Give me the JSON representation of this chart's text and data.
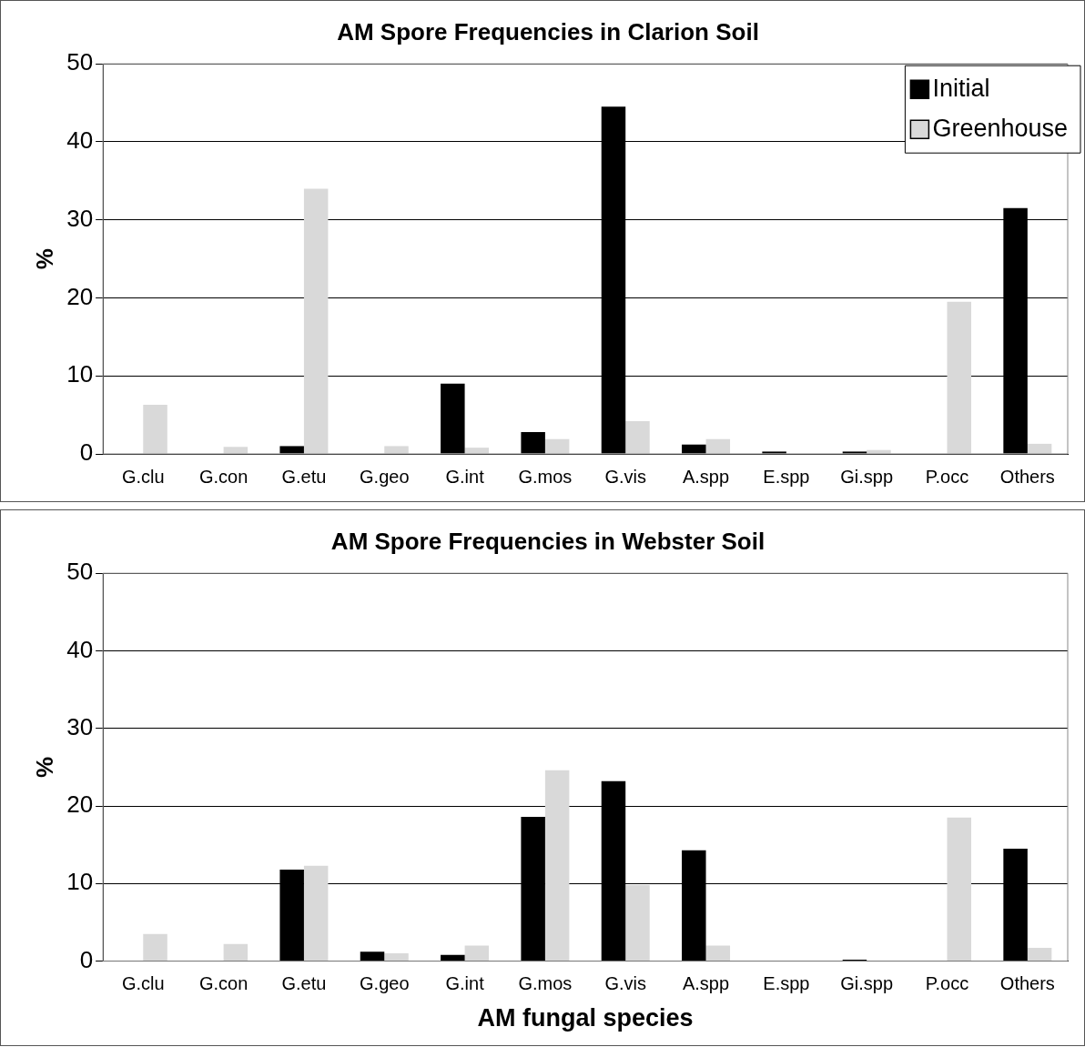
{
  "chart_data": [
    {
      "type": "bar",
      "title": "AM Spore Frequencies in Clarion Soil",
      "ylabel": "%",
      "categories": [
        "G.clu",
        "G.con",
        "G.etu",
        "G.geo",
        "G.int",
        "G.mos",
        "G.vis",
        "A.spp",
        "E.spp",
        "Gi.spp",
        "P.occ",
        "Others"
      ],
      "series": [
        {
          "name": "Initial",
          "color": "#000000",
          "values": [
            0,
            0,
            1,
            0,
            9,
            2.8,
            44.5,
            1.2,
            0.3,
            0.3,
            0,
            31.5
          ]
        },
        {
          "name": "Greenhouse",
          "color": "#d9d9d9",
          "values": [
            6.3,
            0.9,
            34,
            1,
            0.8,
            1.9,
            4.2,
            1.9,
            0,
            0.5,
            19.5,
            1.3
          ]
        }
      ],
      "ylim": [
        0,
        50
      ],
      "yticks": [
        0,
        10,
        20,
        30,
        40,
        50
      ],
      "grid": "y",
      "legend": "top right"
    },
    {
      "type": "bar",
      "title": "AM Spore Frequencies in Webster Soil",
      "xlabel": "AM fungal species",
      "ylabel": "%",
      "categories": [
        "G.clu",
        "G.con",
        "G.etu",
        "G.geo",
        "G.int",
        "G.mos",
        "G.vis",
        "A.spp",
        "E.spp",
        "Gi.spp",
        "P.occ",
        "Others"
      ],
      "series": [
        {
          "color": "#000000",
          "values": [
            0,
            0,
            11.8,
            1.2,
            0.8,
            18.6,
            23.2,
            14.3,
            0,
            0.2,
            0,
            14.5
          ]
        },
        {
          "color": "#d9d9d9",
          "values": [
            3.5,
            2.2,
            12.3,
            1,
            2,
            24.6,
            9.8,
            2,
            0,
            0,
            18.5,
            1.7
          ]
        }
      ],
      "ylim": [
        0,
        50
      ],
      "yticks": [
        0,
        10,
        20,
        30,
        40,
        50
      ],
      "grid": "y"
    }
  ]
}
